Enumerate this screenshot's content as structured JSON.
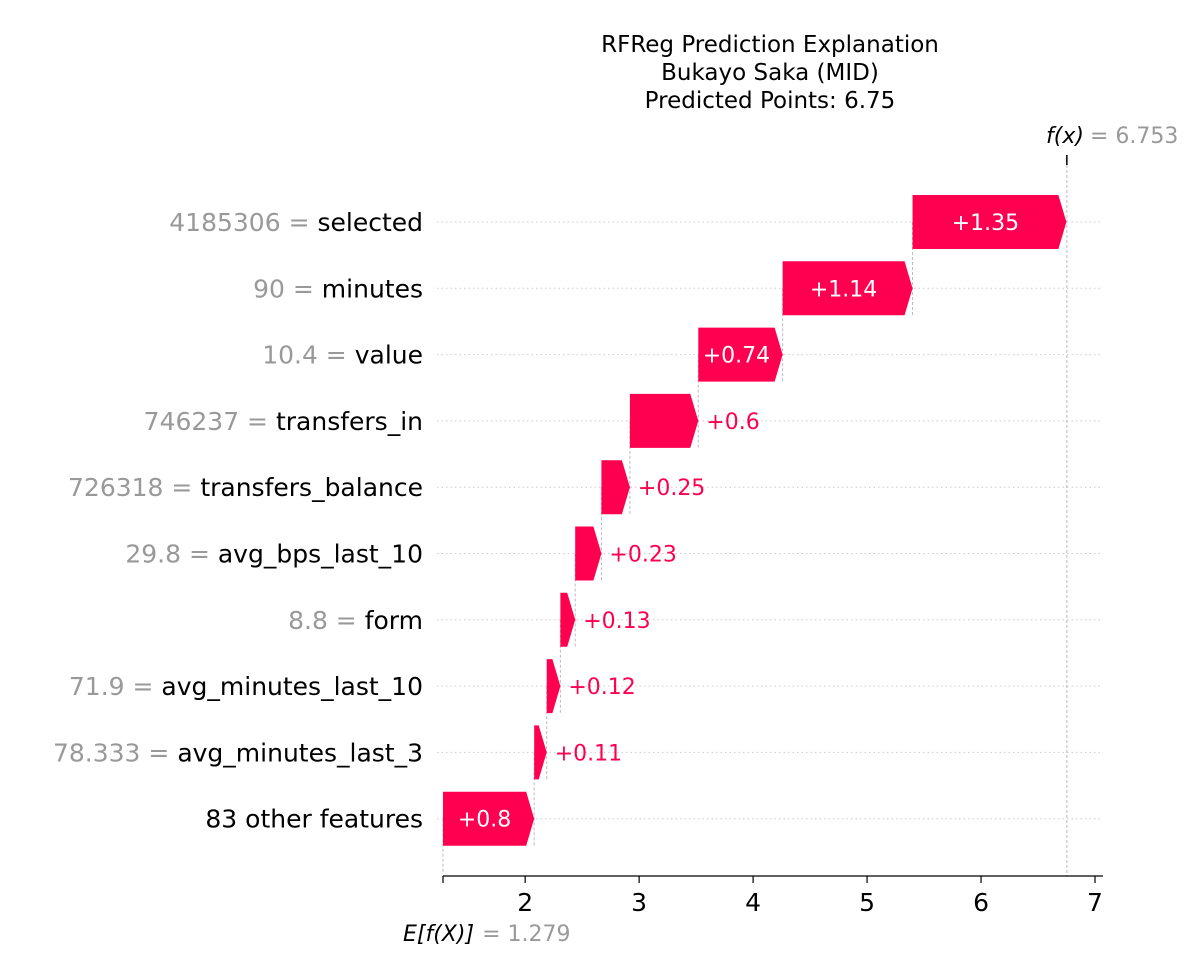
{
  "chart_data": {
    "type": "waterfall",
    "title_lines": [
      "RFReg Prediction Explanation",
      "Bukayo Saka (MID)",
      "Predicted Points: 6.75"
    ],
    "base_value": 1.279,
    "base_label": "E[f(X)]",
    "base_value_text": "= 1.279",
    "final_value": 6.753,
    "final_label": "f(x)",
    "final_value_text": "= 6.753",
    "xlim": [
      1.279,
      7.0
    ],
    "xticks": [
      2,
      3,
      4,
      5,
      6,
      7
    ],
    "features": [
      {
        "value_text": "4185306",
        "name": "selected",
        "contribution": 1.35,
        "label": "+1.35"
      },
      {
        "value_text": "90",
        "name": "minutes",
        "contribution": 1.14,
        "label": "+1.14"
      },
      {
        "value_text": "10.4",
        "name": "value",
        "contribution": 0.74,
        "label": "+0.74"
      },
      {
        "value_text": "746237",
        "name": "transfers_in",
        "contribution": 0.6,
        "label": "+0.6"
      },
      {
        "value_text": "726318",
        "name": "transfers_balance",
        "contribution": 0.25,
        "label": "+0.25"
      },
      {
        "value_text": "29.8",
        "name": "avg_bps_last_10",
        "contribution": 0.23,
        "label": "+0.23"
      },
      {
        "value_text": "8.8",
        "name": "form",
        "contribution": 0.13,
        "label": "+0.13"
      },
      {
        "value_text": "71.9",
        "name": "avg_minutes_last_10",
        "contribution": 0.12,
        "label": "+0.12"
      },
      {
        "value_text": "78.333",
        "name": "avg_minutes_last_3",
        "contribution": 0.11,
        "label": "+0.11"
      },
      {
        "value_text": "",
        "name": "83 other features",
        "contribution": 0.8,
        "label": "+0.8"
      }
    ],
    "colors": {
      "positive": "#ff0051",
      "feature_value": "#999999",
      "gridline": "#cccccc"
    }
  }
}
